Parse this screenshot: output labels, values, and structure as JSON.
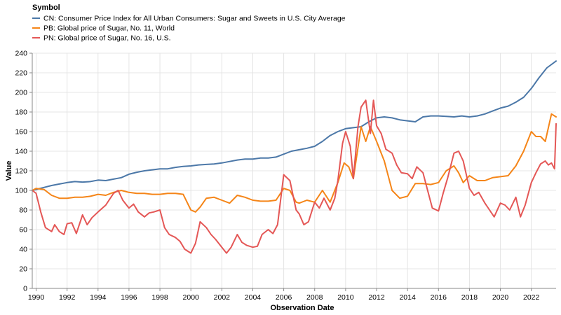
{
  "chart_data": {
    "type": "line",
    "legend_title": "Symbol",
    "legend_position": "top-left",
    "xlabel": "Observation Date",
    "ylabel": "Value",
    "xlim": [
      1989.75,
      2023.6
    ],
    "ylim": [
      0,
      240
    ],
    "grid": true,
    "x_ticks": [
      1990,
      1992,
      1994,
      1996,
      1998,
      2000,
      2002,
      2004,
      2006,
      2008,
      2010,
      2012,
      2014,
      2016,
      2018,
      2020,
      2022
    ],
    "x_tick_labels": [
      "1990",
      "1992",
      "1994",
      "1996",
      "1998",
      "2000",
      "2002",
      "2004",
      "2006",
      "2008",
      "2010",
      "2012",
      "2014",
      "2016",
      "2018",
      "2020",
      "2022"
    ],
    "y_ticks": [
      0,
      20,
      40,
      60,
      80,
      100,
      120,
      140,
      160,
      180,
      200,
      220,
      240
    ],
    "y_tick_labels": [
      "0",
      "20",
      "40",
      "60",
      "80",
      "100",
      "120",
      "140",
      "160",
      "180",
      "200",
      "220",
      "240"
    ],
    "series": [
      {
        "name": "CN: Consumer Price Index for All Urban Consumers: Sugar and Sweets in U.S. City Average",
        "color": "#4c78a8",
        "points": [
          [
            1989.75,
            100
          ],
          [
            1990,
            101
          ],
          [
            1990.5,
            103
          ],
          [
            1991,
            105
          ],
          [
            1991.5,
            106.5
          ],
          [
            1992,
            108
          ],
          [
            1992.5,
            109
          ],
          [
            1993,
            108.5
          ],
          [
            1993.5,
            109
          ],
          [
            1994,
            110.5
          ],
          [
            1994.5,
            110
          ],
          [
            1995,
            111.5
          ],
          [
            1995.5,
            113
          ],
          [
            1996,
            116.5
          ],
          [
            1996.5,
            118.5
          ],
          [
            1997,
            120
          ],
          [
            1997.5,
            121
          ],
          [
            1998,
            122
          ],
          [
            1998.5,
            122
          ],
          [
            1999,
            123.5
          ],
          [
            1999.5,
            124.5
          ],
          [
            2000,
            125
          ],
          [
            2000.5,
            126
          ],
          [
            2001,
            126.5
          ],
          [
            2001.5,
            127
          ],
          [
            2002,
            128
          ],
          [
            2002.5,
            129.5
          ],
          [
            2003,
            131
          ],
          [
            2003.5,
            132
          ],
          [
            2004,
            132
          ],
          [
            2004.5,
            133
          ],
          [
            2005,
            133
          ],
          [
            2005.5,
            134
          ],
          [
            2006,
            137
          ],
          [
            2006.5,
            140
          ],
          [
            2007,
            141.5
          ],
          [
            2007.5,
            143
          ],
          [
            2008,
            145
          ],
          [
            2008.5,
            150
          ],
          [
            2009,
            156
          ],
          [
            2009.5,
            160
          ],
          [
            2010,
            163
          ],
          [
            2010.5,
            164
          ],
          [
            2011,
            165
          ],
          [
            2011.5,
            170
          ],
          [
            2012,
            174
          ],
          [
            2012.5,
            175
          ],
          [
            2013,
            174
          ],
          [
            2013.5,
            172
          ],
          [
            2014,
            171
          ],
          [
            2014.5,
            170
          ],
          [
            2015,
            175
          ],
          [
            2015.5,
            176
          ],
          [
            2016,
            176
          ],
          [
            2016.5,
            175.5
          ],
          [
            2017,
            175
          ],
          [
            2017.5,
            176
          ],
          [
            2018,
            175
          ],
          [
            2018.5,
            176
          ],
          [
            2019,
            178
          ],
          [
            2019.5,
            181
          ],
          [
            2020,
            184
          ],
          [
            2020.5,
            186
          ],
          [
            2021,
            190
          ],
          [
            2021.5,
            195
          ],
          [
            2022,
            204
          ],
          [
            2022.5,
            215
          ],
          [
            2023,
            225
          ],
          [
            2023.6,
            232
          ]
        ]
      },
      {
        "name": "PB: Global price of Sugar, No. 11, World",
        "color": "#f58518",
        "points": [
          [
            1989.75,
            100
          ],
          [
            1990,
            102
          ],
          [
            1990.5,
            101
          ],
          [
            1991,
            95
          ],
          [
            1991.5,
            92
          ],
          [
            1992,
            92
          ],
          [
            1992.5,
            93
          ],
          [
            1993,
            93
          ],
          [
            1993.5,
            94
          ],
          [
            1994,
            96
          ],
          [
            1994.5,
            95
          ],
          [
            1995,
            98
          ],
          [
            1995.5,
            100
          ],
          [
            1996,
            98
          ],
          [
            1996.5,
            97
          ],
          [
            1997,
            97
          ],
          [
            1997.5,
            96
          ],
          [
            1998,
            96
          ],
          [
            1998.5,
            97
          ],
          [
            1999,
            97
          ],
          [
            1999.5,
            96
          ],
          [
            2000,
            80
          ],
          [
            2000.3,
            78
          ],
          [
            2000.6,
            83
          ],
          [
            2001,
            92
          ],
          [
            2001.5,
            93
          ],
          [
            2002,
            90
          ],
          [
            2002.5,
            87
          ],
          [
            2003,
            95
          ],
          [
            2003.5,
            93
          ],
          [
            2004,
            90
          ],
          [
            2004.5,
            89
          ],
          [
            2005,
            89
          ],
          [
            2005.5,
            90
          ],
          [
            2006,
            102
          ],
          [
            2006.4,
            100
          ],
          [
            2006.8,
            88
          ],
          [
            2007,
            87
          ],
          [
            2007.5,
            90
          ],
          [
            2008,
            88
          ],
          [
            2008.5,
            100
          ],
          [
            2009,
            88
          ],
          [
            2009.5,
            108
          ],
          [
            2009.9,
            128
          ],
          [
            2010.2,
            124
          ],
          [
            2010.5,
            112
          ],
          [
            2011,
            165
          ],
          [
            2011.3,
            150
          ],
          [
            2011.6,
            165
          ],
          [
            2012,
            150
          ],
          [
            2012.5,
            130
          ],
          [
            2013,
            100
          ],
          [
            2013.5,
            92
          ],
          [
            2014,
            94
          ],
          [
            2014.5,
            107
          ],
          [
            2015,
            107
          ],
          [
            2015.5,
            106
          ],
          [
            2016,
            108
          ],
          [
            2016.5,
            120
          ],
          [
            2017,
            125
          ],
          [
            2017.3,
            118
          ],
          [
            2017.6,
            108
          ],
          [
            2018,
            115
          ],
          [
            2018.5,
            110
          ],
          [
            2019,
            110
          ],
          [
            2019.5,
            113
          ],
          [
            2020,
            114
          ],
          [
            2020.5,
            115
          ],
          [
            2021,
            125
          ],
          [
            2021.5,
            140
          ],
          [
            2022,
            160
          ],
          [
            2022.3,
            155
          ],
          [
            2022.6,
            155
          ],
          [
            2022.9,
            150
          ],
          [
            2023.3,
            178
          ],
          [
            2023.6,
            175
          ]
        ]
      },
      {
        "name": "PN: Global price of Sugar, No. 16, U.S.",
        "color": "#e45756",
        "points": [
          [
            1989.75,
            100
          ],
          [
            1990,
            97
          ],
          [
            1990.3,
            78
          ],
          [
            1990.6,
            62
          ],
          [
            1991,
            58
          ],
          [
            1991.2,
            65
          ],
          [
            1991.5,
            58
          ],
          [
            1991.8,
            55
          ],
          [
            1992,
            66
          ],
          [
            1992.3,
            67
          ],
          [
            1992.6,
            56
          ],
          [
            1993,
            75
          ],
          [
            1993.3,
            65
          ],
          [
            1993.6,
            72
          ],
          [
            1994,
            78
          ],
          [
            1994.5,
            85
          ],
          [
            1995,
            97
          ],
          [
            1995.3,
            100
          ],
          [
            1995.6,
            90
          ],
          [
            1996,
            82
          ],
          [
            1996.3,
            86
          ],
          [
            1996.6,
            78
          ],
          [
            1997,
            73
          ],
          [
            1997.3,
            77
          ],
          [
            1997.6,
            78
          ],
          [
            1998,
            80
          ],
          [
            1998.3,
            62
          ],
          [
            1998.6,
            55
          ],
          [
            1999,
            52
          ],
          [
            1999.3,
            48
          ],
          [
            1999.6,
            40
          ],
          [
            2000,
            36
          ],
          [
            2000.3,
            46
          ],
          [
            2000.6,
            68
          ],
          [
            2001,
            62
          ],
          [
            2001.3,
            55
          ],
          [
            2001.6,
            50
          ],
          [
            2002,
            42
          ],
          [
            2002.3,
            36
          ],
          [
            2002.6,
            42
          ],
          [
            2003,
            55
          ],
          [
            2003.3,
            47
          ],
          [
            2003.6,
            44
          ],
          [
            2004,
            42
          ],
          [
            2004.3,
            43
          ],
          [
            2004.6,
            55
          ],
          [
            2005,
            60
          ],
          [
            2005.3,
            56
          ],
          [
            2005.6,
            65
          ],
          [
            2006,
            116
          ],
          [
            2006.4,
            110
          ],
          [
            2006.8,
            80
          ],
          [
            2007,
            76
          ],
          [
            2007.3,
            65
          ],
          [
            2007.6,
            68
          ],
          [
            2008,
            88
          ],
          [
            2008.3,
            82
          ],
          [
            2008.6,
            92
          ],
          [
            2009,
            80
          ],
          [
            2009.3,
            92
          ],
          [
            2009.5,
            110
          ],
          [
            2009.8,
            148
          ],
          [
            2010,
            160
          ],
          [
            2010.3,
            145
          ],
          [
            2010.5,
            112
          ],
          [
            2010.8,
            165
          ],
          [
            2011,
            185
          ],
          [
            2011.3,
            192
          ],
          [
            2011.6,
            158
          ],
          [
            2011.8,
            192
          ],
          [
            2012,
            166
          ],
          [
            2012.3,
            158
          ],
          [
            2012.6,
            142
          ],
          [
            2013,
            138
          ],
          [
            2013.3,
            126
          ],
          [
            2013.6,
            118
          ],
          [
            2014,
            117
          ],
          [
            2014.3,
            112
          ],
          [
            2014.6,
            124
          ],
          [
            2015,
            118
          ],
          [
            2015.3,
            100
          ],
          [
            2015.6,
            82
          ],
          [
            2016,
            79
          ],
          [
            2016.3,
            97
          ],
          [
            2016.6,
            113
          ],
          [
            2017,
            138
          ],
          [
            2017.3,
            140
          ],
          [
            2017.6,
            130
          ],
          [
            2018,
            102
          ],
          [
            2018.3,
            95
          ],
          [
            2018.6,
            98
          ],
          [
            2019,
            87
          ],
          [
            2019.3,
            80
          ],
          [
            2019.6,
            73
          ],
          [
            2020,
            87
          ],
          [
            2020.3,
            85
          ],
          [
            2020.6,
            80
          ],
          [
            2021,
            93
          ],
          [
            2021.3,
            73
          ],
          [
            2021.6,
            85
          ],
          [
            2022,
            108
          ],
          [
            2022.3,
            118
          ],
          [
            2022.6,
            127
          ],
          [
            2022.9,
            130
          ],
          [
            2023.1,
            126
          ],
          [
            2023.3,
            128
          ],
          [
            2023.5,
            122
          ],
          [
            2023.6,
            168
          ]
        ]
      }
    ]
  }
}
